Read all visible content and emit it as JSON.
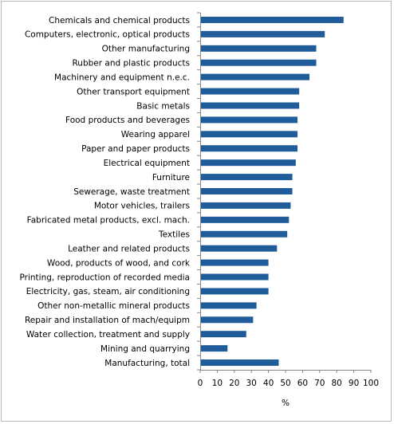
{
  "chart_data": {
    "type": "bar",
    "orientation": "horizontal",
    "categories": [
      "Chemicals and chemical products",
      "Computers, electronic, optical products",
      "Other manufacturing",
      "Rubber and plastic products",
      "Machinery and equipment n.e.c.",
      "Other transport equipment",
      "Basic metals",
      "Food products and beverages",
      "Wearing apparel",
      "Paper and paper products",
      "Electrical equipment",
      "Furniture",
      "Sewerage, waste treatment",
      "Motor vehicles, trailers",
      "Fabricated metal products, excl. mach.",
      "Textiles",
      "Leather and related products",
      "Wood, products of wood, and cork",
      "Printing, reproduction of recorded media",
      "Electricity, gas, steam, air conditioning",
      "Other non-metallic mineral products",
      "Repair and installation  of mach/equipm",
      "Water collection, treatment and supply",
      "Mining and quarrying",
      "Manufacturing, total"
    ],
    "values": [
      84,
      73,
      68,
      68,
      64,
      58,
      58,
      57,
      57,
      57,
      56,
      54,
      54,
      53,
      52,
      51,
      45,
      40,
      40,
      40,
      33,
      31,
      27,
      16,
      46
    ],
    "xlabel": "%",
    "ylabel": "",
    "xlim": [
      0,
      100
    ],
    "xticks": [
      0,
      10,
      20,
      30,
      40,
      50,
      60,
      70,
      80,
      90,
      100
    ],
    "grid": false,
    "legend": "none",
    "bar_color": "#1f5c99",
    "axis_color": "#868686"
  }
}
